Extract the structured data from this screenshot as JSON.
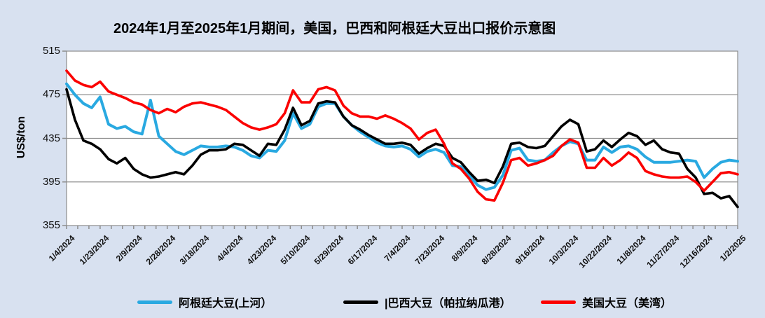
{
  "title": "2024年1月至2025年1月期间，美国，巴西和阿根廷大豆出口报价示意图",
  "colors": {
    "background": "#d8e1f0",
    "plot_background": "#ffffff",
    "grid": "#8c8c8c",
    "tick": "#8c8c8c",
    "axis_text": "#111111"
  },
  "chart_data": {
    "type": "line",
    "title": "2024年1月至2025年1月期间，美国，巴西和阿根廷大豆出口报价示意图",
    "xlabel": "",
    "ylabel": "US$/ton",
    "ylim": [
      355,
      515
    ],
    "yticks": [
      355,
      395,
      435,
      475,
      515
    ],
    "grid": "horizontal",
    "legend_position": "bottom",
    "x_tick_labels": [
      "1/4/2024",
      "1/23/2024",
      "2/9/2024",
      "2/28/2024",
      "3/18/2024",
      "4/4/2024",
      "4/23/2024",
      "5/10/2024",
      "5/29/2024",
      "6/17/2024",
      "7/4/2024",
      "7/23/2024",
      "8/9/2024",
      "8/28/2024",
      "9/16/2024",
      "10/3/2024",
      "10/22/2024",
      "11/8/2024",
      "11/27/2024",
      "12/16/2024",
      "1/2/2025"
    ],
    "samples_per_tick_interval": 4,
    "series": [
      {
        "name": "阿根廷大豆(上河）",
        "color": "#29a9e1",
        "width": 4,
        "values": [
          485,
          475,
          467,
          463,
          473,
          448,
          444,
          446,
          441,
          439,
          470,
          437,
          430,
          423,
          420,
          424,
          428,
          427,
          427,
          428,
          427,
          424,
          419,
          417,
          424,
          423,
          433,
          458,
          444,
          448,
          464,
          467,
          467,
          455,
          447,
          441,
          436,
          431,
          428,
          427,
          428,
          425,
          418,
          423,
          425,
          422,
          410,
          409,
          401,
          392,
          388,
          390,
          401,
          424,
          426,
          415,
          414,
          415,
          422,
          428,
          432,
          430,
          415,
          415,
          427,
          422,
          427,
          428,
          425,
          418,
          413,
          413,
          413,
          414,
          415,
          414,
          399,
          407,
          413,
          415,
          414
        ]
      },
      {
        "name": "|巴西大豆（帕拉纳瓜港）",
        "color": "#000000",
        "width": 3.6,
        "values": [
          480,
          452,
          433,
          430,
          425,
          416,
          412,
          417,
          407,
          402,
          399,
          400,
          402,
          404,
          402,
          410,
          420,
          424,
          424,
          425,
          430,
          429,
          424,
          419,
          430,
          429,
          443,
          463,
          447,
          451,
          467,
          469,
          468,
          455,
          447,
          443,
          438,
          434,
          430,
          430,
          431,
          429,
          421,
          426,
          430,
          428,
          417,
          413,
          404,
          396,
          397,
          394,
          409,
          430,
          431,
          427,
          426,
          428,
          437,
          446,
          452,
          448,
          423,
          425,
          433,
          427,
          434,
          440,
          437,
          429,
          433,
          425,
          422,
          421,
          407,
          399,
          384,
          385,
          380,
          382,
          372
        ]
      },
      {
        "name": "美国大豆（美湾）",
        "color": "#fb0000",
        "width": 3.6,
        "values": [
          497,
          488,
          484,
          482,
          487,
          478,
          475,
          472,
          468,
          466,
          461,
          458,
          462,
          459,
          464,
          467,
          468,
          466,
          464,
          461,
          455,
          449,
          445,
          443,
          445,
          448,
          458,
          479,
          468,
          468,
          480,
          482,
          479,
          465,
          458,
          455,
          455,
          453,
          456,
          453,
          449,
          444,
          434,
          440,
          443,
          430,
          412,
          407,
          398,
          386,
          379,
          378,
          394,
          415,
          417,
          410,
          412,
          415,
          419,
          428,
          434,
          431,
          408,
          408,
          417,
          410,
          415,
          422,
          417,
          405,
          402,
          400,
          399,
          399,
          400,
          395,
          387,
          395,
          403,
          404,
          402
        ]
      }
    ]
  },
  "legend": {
    "marker_names": [
      "argentina-line-marker",
      "brazil-line-marker",
      "us-line-marker"
    ]
  }
}
